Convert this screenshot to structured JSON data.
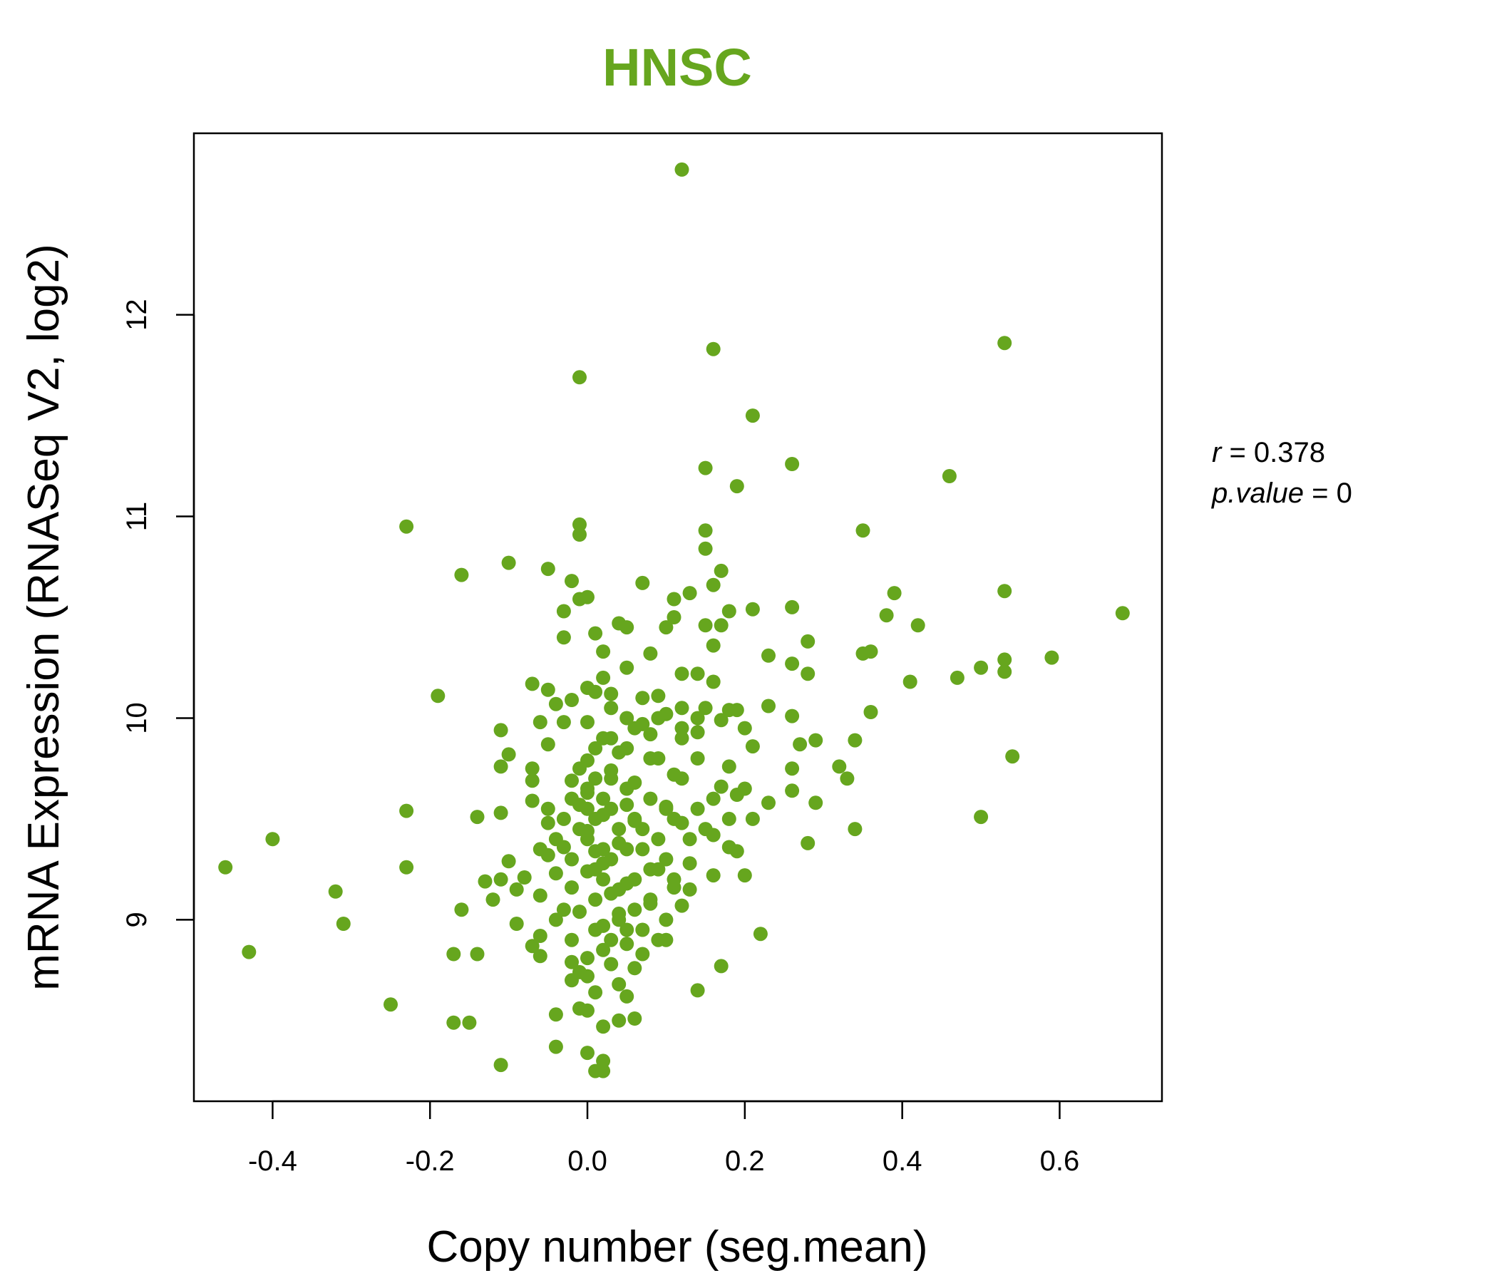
{
  "chart_data": {
    "type": "scatter",
    "title": "HNSC",
    "xlabel": "Copy number (seg.mean)",
    "ylabel": "mRNA Expression (RNASeq V2, log2)",
    "xlim": [
      -0.5,
      0.73
    ],
    "ylim": [
      8.1,
      12.9
    ],
    "x_ticks": [
      "-0.4",
      "-0.2",
      "0.0",
      "0.2",
      "0.4",
      "0.6"
    ],
    "y_ticks": [
      "9",
      "10",
      "11",
      "12"
    ],
    "grid": false,
    "legend": "none",
    "point_color": "#66a61e",
    "title_color": "#66a61e",
    "stats": {
      "r": "0.378",
      "p_value": "0"
    },
    "points": [
      [
        0.12,
        12.72
      ],
      [
        0.53,
        11.86
      ],
      [
        0.16,
        11.83
      ],
      [
        -0.01,
        11.69
      ],
      [
        0.21,
        11.5
      ],
      [
        0.26,
        11.26
      ],
      [
        0.15,
        11.24
      ],
      [
        0.46,
        11.2
      ],
      [
        0.19,
        11.15
      ],
      [
        -0.23,
        10.95
      ],
      [
        -0.01,
        10.96
      ],
      [
        -0.01,
        10.91
      ],
      [
        0.35,
        10.93
      ],
      [
        0.15,
        10.93
      ],
      [
        0.15,
        10.84
      ],
      [
        -0.1,
        10.77
      ],
      [
        -0.05,
        10.74
      ],
      [
        -0.16,
        10.71
      ],
      [
        0.17,
        10.73
      ],
      [
        -0.02,
        10.68
      ],
      [
        0.07,
        10.67
      ],
      [
        0.16,
        10.66
      ],
      [
        0.39,
        10.62
      ],
      [
        0.53,
        10.63
      ],
      [
        0.68,
        10.52
      ],
      [
        -0.01,
        10.59
      ],
      [
        0.0,
        10.6
      ],
      [
        0.11,
        10.59
      ],
      [
        0.13,
        10.62
      ],
      [
        0.26,
        10.55
      ],
      [
        0.21,
        10.54
      ],
      [
        0.18,
        10.53
      ],
      [
        -0.03,
        10.53
      ],
      [
        0.38,
        10.51
      ],
      [
        0.42,
        10.46
      ],
      [
        0.04,
        10.47
      ],
      [
        0.05,
        10.45
      ],
      [
        0.15,
        10.46
      ],
      [
        0.17,
        10.46
      ],
      [
        0.11,
        10.5
      ],
      [
        0.1,
        10.45
      ],
      [
        0.01,
        10.42
      ],
      [
        -0.03,
        10.4
      ],
      [
        0.28,
        10.38
      ],
      [
        0.16,
        10.36
      ],
      [
        0.02,
        10.33
      ],
      [
        0.08,
        10.32
      ],
      [
        0.23,
        10.31
      ],
      [
        0.36,
        10.33
      ],
      [
        0.35,
        10.32
      ],
      [
        0.59,
        10.3
      ],
      [
        0.53,
        10.29
      ],
      [
        0.26,
        10.27
      ],
      [
        0.5,
        10.25
      ],
      [
        0.53,
        10.23
      ],
      [
        0.47,
        10.2
      ],
      [
        0.28,
        10.22
      ],
      [
        0.41,
        10.18
      ],
      [
        0.14,
        10.22
      ],
      [
        0.12,
        10.22
      ],
      [
        0.16,
        10.18
      ],
      [
        -0.07,
        10.17
      ],
      [
        -0.19,
        10.11
      ],
      [
        -0.05,
        10.14
      ],
      [
        0.0,
        10.15
      ],
      [
        0.01,
        10.13
      ],
      [
        0.03,
        10.12
      ],
      [
        0.09,
        10.11
      ],
      [
        -0.02,
        10.09
      ],
      [
        -0.04,
        10.07
      ],
      [
        0.23,
        10.06
      ],
      [
        0.19,
        10.04
      ],
      [
        0.18,
        10.04
      ],
      [
        0.26,
        10.01
      ],
      [
        0.36,
        10.03
      ],
      [
        0.15,
        10.05
      ],
      [
        0.1,
        10.02
      ],
      [
        0.05,
        10.0
      ],
      [
        0.17,
        9.99
      ],
      [
        0.0,
        9.98
      ],
      [
        -0.06,
        9.98
      ],
      [
        -0.03,
        9.98
      ],
      [
        0.07,
        9.97
      ],
      [
        0.12,
        9.95
      ],
      [
        0.2,
        9.95
      ],
      [
        -0.11,
        9.94
      ],
      [
        0.14,
        9.93
      ],
      [
        0.08,
        9.92
      ],
      [
        0.03,
        9.9
      ],
      [
        0.29,
        9.89
      ],
      [
        0.34,
        9.89
      ],
      [
        0.27,
        9.87
      ],
      [
        0.21,
        9.86
      ],
      [
        -0.05,
        9.87
      ],
      [
        0.01,
        9.85
      ],
      [
        0.04,
        9.83
      ],
      [
        -0.1,
        9.82
      ],
      [
        0.54,
        9.81
      ],
      [
        0.09,
        9.8
      ],
      [
        0.0,
        9.79
      ],
      [
        0.32,
        9.76
      ],
      [
        0.18,
        9.76
      ],
      [
        0.26,
        9.75
      ],
      [
        -0.07,
        9.75
      ],
      [
        -0.11,
        9.76
      ],
      [
        0.03,
        9.74
      ],
      [
        0.11,
        9.72
      ],
      [
        0.12,
        9.7
      ],
      [
        0.33,
        9.7
      ],
      [
        -0.07,
        9.69
      ],
      [
        -0.02,
        9.69
      ],
      [
        0.06,
        9.68
      ],
      [
        0.17,
        9.66
      ],
      [
        0.2,
        9.65
      ],
      [
        0.26,
        9.64
      ],
      [
        0.19,
        9.62
      ],
      [
        0.0,
        9.63
      ],
      [
        0.23,
        9.58
      ],
      [
        0.29,
        9.58
      ],
      [
        -0.07,
        9.59
      ],
      [
        -0.01,
        9.57
      ],
      [
        0.05,
        9.57
      ],
      [
        0.1,
        9.56
      ],
      [
        -0.23,
        9.54
      ],
      [
        0.14,
        9.55
      ],
      [
        -0.11,
        9.53
      ],
      [
        0.02,
        9.52
      ],
      [
        0.5,
        9.51
      ],
      [
        -0.14,
        9.51
      ],
      [
        0.21,
        9.5
      ],
      [
        0.06,
        9.49
      ],
      [
        0.12,
        9.48
      ],
      [
        -0.05,
        9.48
      ],
      [
        0.34,
        9.45
      ],
      [
        0.0,
        9.44
      ],
      [
        -0.4,
        9.4
      ],
      [
        0.16,
        9.42
      ],
      [
        0.28,
        9.38
      ],
      [
        0.04,
        9.38
      ],
      [
        0.18,
        9.36
      ],
      [
        -0.03,
        9.36
      ],
      [
        0.07,
        9.35
      ],
      [
        0.01,
        9.34
      ],
      [
        0.19,
        9.34
      ],
      [
        -0.05,
        9.32
      ],
      [
        -0.1,
        9.29
      ],
      [
        0.02,
        9.28
      ],
      [
        0.13,
        9.28
      ],
      [
        -0.23,
        9.26
      ],
      [
        -0.46,
        9.26
      ],
      [
        0.09,
        9.25
      ],
      [
        0.0,
        9.24
      ],
      [
        -0.04,
        9.23
      ],
      [
        0.16,
        9.22
      ],
      [
        0.2,
        9.22
      ],
      [
        -0.08,
        9.21
      ],
      [
        -0.11,
        9.2
      ],
      [
        -0.13,
        9.19
      ],
      [
        0.05,
        9.18
      ],
      [
        -0.02,
        9.16
      ],
      [
        0.11,
        9.16
      ],
      [
        -0.09,
        9.15
      ],
      [
        -0.32,
        9.14
      ],
      [
        0.03,
        9.13
      ],
      [
        -0.06,
        9.12
      ],
      [
        0.01,
        9.1
      ],
      [
        -0.12,
        9.1
      ],
      [
        0.08,
        9.08
      ],
      [
        0.12,
        9.07
      ],
      [
        -0.16,
        9.05
      ],
      [
        -0.01,
        9.04
      ],
      [
        0.04,
        9.03
      ],
      [
        -0.04,
        9.0
      ],
      [
        0.1,
        9.0
      ],
      [
        -0.31,
        8.98
      ],
      [
        -0.09,
        8.98
      ],
      [
        0.02,
        8.97
      ],
      [
        0.07,
        8.95
      ],
      [
        0.22,
        8.93
      ],
      [
        -0.06,
        8.92
      ],
      [
        0.1,
        8.9
      ],
      [
        -0.02,
        8.9
      ],
      [
        0.05,
        8.88
      ],
      [
        -0.07,
        8.87
      ],
      [
        0.02,
        8.85
      ],
      [
        -0.43,
        8.84
      ],
      [
        -0.17,
        8.83
      ],
      [
        -0.14,
        8.83
      ],
      [
        0.07,
        8.83
      ],
      [
        -0.06,
        8.82
      ],
      [
        0.0,
        8.81
      ],
      [
        -0.02,
        8.79
      ],
      [
        0.03,
        8.78
      ],
      [
        0.17,
        8.77
      ],
      [
        0.06,
        8.76
      ],
      [
        -0.01,
        8.74
      ],
      [
        0.0,
        8.72
      ],
      [
        -0.02,
        8.7
      ],
      [
        0.04,
        8.68
      ],
      [
        0.14,
        8.65
      ],
      [
        0.01,
        8.64
      ],
      [
        0.05,
        8.62
      ],
      [
        -0.25,
        8.58
      ],
      [
        -0.01,
        8.56
      ],
      [
        0.0,
        8.55
      ],
      [
        -0.04,
        8.53
      ],
      [
        0.06,
        8.51
      ],
      [
        0.04,
        8.5
      ],
      [
        -0.17,
        8.49
      ],
      [
        -0.15,
        8.49
      ],
      [
        0.02,
        8.47
      ],
      [
        -0.04,
        8.37
      ],
      [
        0.0,
        8.34
      ],
      [
        0.02,
        8.3
      ],
      [
        -0.11,
        8.28
      ],
      [
        0.01,
        8.25
      ],
      [
        0.02,
        8.25
      ],
      [
        0.02,
        9.6
      ],
      [
        0.03,
        9.55
      ],
      [
        0.01,
        9.5
      ],
      [
        0.04,
        9.45
      ],
      [
        0.0,
        9.4
      ],
      [
        0.02,
        9.35
      ],
      [
        0.03,
        9.3
      ],
      [
        0.01,
        9.25
      ],
      [
        0.05,
        9.65
      ],
      [
        0.06,
        9.5
      ],
      [
        0.0,
        9.55
      ],
      [
        -0.01,
        9.45
      ],
      [
        0.03,
        9.7
      ],
      [
        0.02,
        9.2
      ],
      [
        0.04,
        9.15
      ],
      [
        0.05,
        9.35
      ],
      [
        0.07,
        9.45
      ],
      [
        0.08,
        9.6
      ],
      [
        0.09,
        9.4
      ],
      [
        0.1,
        9.3
      ],
      [
        -0.02,
        9.3
      ],
      [
        -0.03,
        9.5
      ],
      [
        -0.02,
        9.6
      ],
      [
        0.06,
        9.2
      ],
      [
        0.08,
        9.1
      ],
      [
        0.11,
        9.5
      ],
      [
        0.13,
        9.4
      ],
      [
        0.15,
        9.45
      ],
      [
        -0.04,
        9.4
      ],
      [
        0.02,
        9.9
      ],
      [
        0.05,
        9.85
      ],
      [
        0.08,
        9.8
      ],
      [
        0.06,
        9.95
      ],
      [
        0.03,
        10.05
      ],
      [
        0.07,
        10.1
      ],
      [
        0.09,
        10.0
      ],
      [
        0.12,
        9.9
      ],
      [
        0.14,
        9.8
      ],
      [
        0.04,
        9.0
      ],
      [
        0.06,
        9.05
      ],
      [
        0.01,
        8.95
      ],
      [
        -0.03,
        9.05
      ],
      [
        0.09,
        8.9
      ],
      [
        0.11,
        9.2
      ],
      [
        0.13,
        9.15
      ],
      [
        0.0,
        9.65
      ],
      [
        0.01,
        9.7
      ],
      [
        -0.01,
        9.75
      ],
      [
        0.02,
        10.2
      ],
      [
        0.05,
        10.25
      ],
      [
        0.08,
        9.25
      ],
      [
        0.1,
        9.55
      ],
      [
        -0.05,
        9.55
      ],
      [
        -0.06,
        9.35
      ],
      [
        0.16,
        9.6
      ],
      [
        0.18,
        9.5
      ],
      [
        0.14,
        10.0
      ],
      [
        0.12,
        10.05
      ],
      [
        0.03,
        8.9
      ],
      [
        0.05,
        8.95
      ]
    ]
  }
}
